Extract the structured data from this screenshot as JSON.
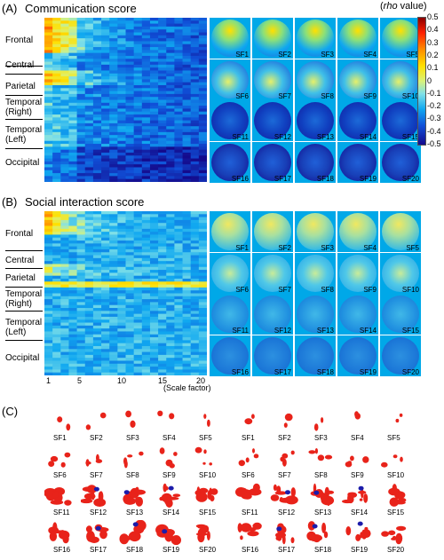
{
  "panelA": {
    "letter": "(A)",
    "title": "Communication score",
    "regions": [
      "Frontal",
      "Central",
      "Parietal",
      "Temporal\n(Right)",
      "Temporal\n(Left)",
      "Occipital"
    ]
  },
  "panelB": {
    "letter": "(B)",
    "title": "Social interaction score",
    "regions": [
      "Frontal",
      "Central",
      "Parietal",
      "Temporal\n(Right)",
      "Temporal\n(Left)",
      "Occipital"
    ],
    "xticks": [
      "1",
      "5",
      "10",
      "15",
      "20"
    ],
    "xlabel": "(Scale factor)"
  },
  "panelC": {
    "letter": "(C)"
  },
  "sf_labels": [
    "SF1",
    "SF2",
    "SF3",
    "SF4",
    "SF5",
    "SF6",
    "SF7",
    "SF8",
    "SF9",
    "SF10",
    "SF11",
    "SF12",
    "SF13",
    "SF14",
    "SF15",
    "SF16",
    "SF17",
    "SF18",
    "SF19",
    "SF20"
  ],
  "colorbar": {
    "title_prefix": "(",
    "title_italic": "rho",
    "title_suffix": " value)",
    "ticks": [
      "0.5",
      "0.4",
      "0.3",
      "0.2",
      "0.1",
      "0",
      "-0.1",
      "-0.2",
      "-0.3",
      "-0.4",
      "-0.5"
    ],
    "range": [
      -0.5,
      0.5
    ]
  },
  "colors": {
    "high": "#d7191c",
    "zero": "#e6f06a",
    "low": "#1a1aa0",
    "sig_pos": "#e8231a",
    "sig_neg": "#1c1caa"
  }
}
